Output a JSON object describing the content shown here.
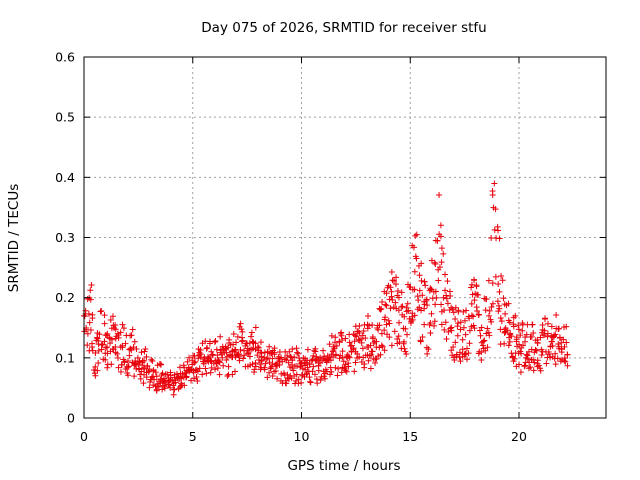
{
  "chart_data": {
    "type": "scatter",
    "title": "Day 075 of 2026, SRMTID for receiver stfu",
    "xlabel": "GPS time / hours",
    "ylabel": "SRMTID / TECUs",
    "xlim": [
      0,
      24
    ],
    "ylim": [
      0,
      0.6
    ],
    "xticks": [
      0,
      5,
      10,
      15,
      20
    ],
    "xtick_labels": [
      "0",
      "5",
      "10",
      "15",
      "20"
    ],
    "yticks": [
      0,
      0.1,
      0.2,
      0.3,
      0.4,
      0.5,
      0.6
    ],
    "ytick_labels": [
      "0",
      "0.1",
      "0.2",
      "0.3",
      "0.4",
      "0.5",
      "0.6"
    ],
    "grid": true,
    "marker": "plus",
    "color": "#e8000b",
    "series": [
      {
        "name": "SRMTID",
        "sample_interval_hours": 0.1,
        "x_start": 0,
        "values": [
          0.15,
          0.14,
          0.16,
          0.2,
          0.13,
          0.1,
          0.11,
          0.12,
          0.15,
          0.13,
          0.12,
          0.11,
          0.14,
          0.13,
          0.12,
          0.13,
          0.12,
          0.11,
          0.12,
          0.11,
          0.1,
          0.11,
          0.12,
          0.1,
          0.09,
          0.1,
          0.09,
          0.08,
          0.09,
          0.08,
          0.07,
          0.08,
          0.07,
          0.06,
          0.07,
          0.07,
          0.06,
          0.06,
          0.07,
          0.07,
          0.06,
          0.05,
          0.06,
          0.06,
          0.07,
          0.06,
          0.07,
          0.07,
          0.08,
          0.08,
          0.09,
          0.09,
          0.08,
          0.09,
          0.1,
          0.09,
          0.1,
          0.11,
          0.1,
          0.11,
          0.1,
          0.09,
          0.1,
          0.11,
          0.1,
          0.1,
          0.09,
          0.1,
          0.1,
          0.11,
          0.1,
          0.11,
          0.12,
          0.11,
          0.12,
          0.11,
          0.12,
          0.11,
          0.11,
          0.12,
          0.11,
          0.1,
          0.11,
          0.1,
          0.09,
          0.1,
          0.09,
          0.1,
          0.09,
          0.08,
          0.09,
          0.08,
          0.09,
          0.08,
          0.09,
          0.08,
          0.09,
          0.08,
          0.09,
          0.08,
          0.08,
          0.09,
          0.08,
          0.09,
          0.08,
          0.08,
          0.09,
          0.08,
          0.09,
          0.08,
          0.09,
          0.09,
          0.1,
          0.1,
          0.11,
          0.1,
          0.11,
          0.1,
          0.11,
          0.1,
          0.11,
          0.1,
          0.11,
          0.1,
          0.11,
          0.12,
          0.11,
          0.12,
          0.11,
          0.12,
          0.12,
          0.13,
          0.12,
          0.13,
          0.13,
          0.14,
          0.14,
          0.15,
          0.16,
          0.16,
          0.17,
          0.17,
          0.18,
          0.19,
          0.18,
          0.17,
          0.16,
          0.17,
          0.16,
          0.17,
          0.19,
          0.21,
          0.24,
          0.26,
          0.22,
          0.19,
          0.18,
          0.17,
          0.16,
          0.18,
          0.2,
          0.23,
          0.26,
          0.29,
          0.26,
          0.21,
          0.18,
          0.17,
          0.16,
          0.15,
          0.14,
          0.15,
          0.14,
          0.13,
          0.14,
          0.13,
          0.14,
          0.15,
          0.17,
          0.19,
          0.18,
          0.16,
          0.15,
          0.14,
          0.15,
          0.16,
          0.18,
          0.22,
          0.27,
          0.33,
          0.28,
          0.22,
          0.19,
          0.17,
          0.16,
          0.15,
          0.14,
          0.13,
          0.13,
          0.12,
          0.12,
          0.11,
          0.12,
          0.11,
          0.12,
          0.11,
          0.12,
          0.11,
          0.11,
          0.12,
          0.11,
          0.12,
          0.13,
          0.12,
          0.12,
          0.13,
          0.12,
          0.13,
          0.12,
          0.13,
          0.12,
          0.13,
          0.12
        ]
      }
    ],
    "annotations": []
  }
}
